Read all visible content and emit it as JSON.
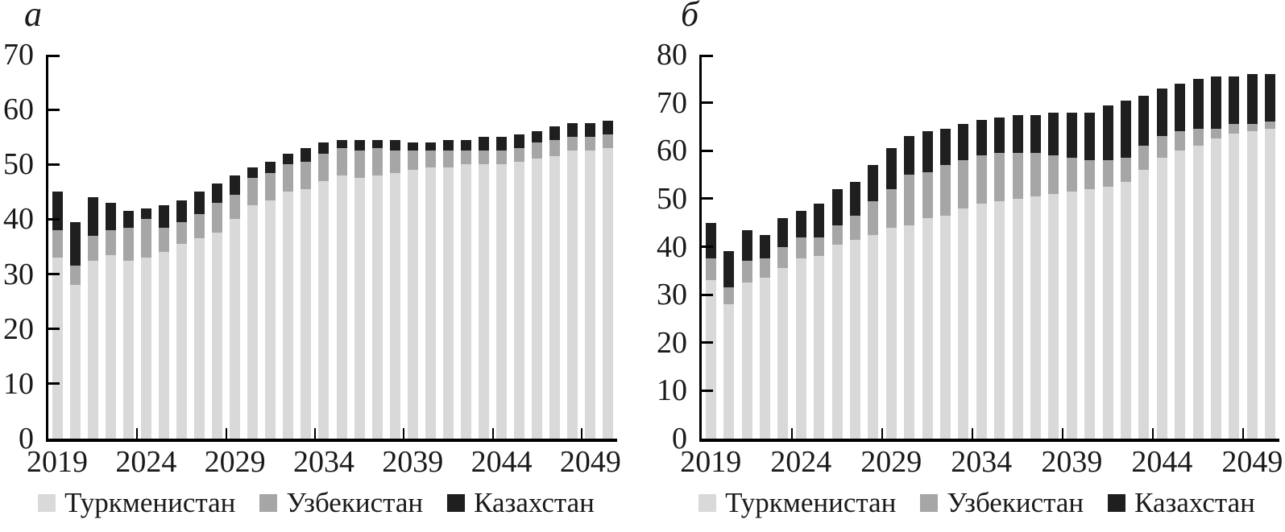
{
  "figure": {
    "background": "#ffffff",
    "text_color": "#1a1a1a",
    "axis_color": "#000000"
  },
  "chart_data": [
    {
      "id": "a",
      "title": "а",
      "type": "bar",
      "stacked": true,
      "grid": false,
      "legend_position": "bottom",
      "ylim": [
        0,
        70
      ],
      "y_ticks": [
        0,
        10,
        20,
        30,
        40,
        50,
        60,
        70
      ],
      "x": [
        2019,
        2020,
        2021,
        2022,
        2023,
        2024,
        2025,
        2026,
        2027,
        2028,
        2029,
        2030,
        2031,
        2032,
        2033,
        2034,
        2035,
        2036,
        2037,
        2038,
        2039,
        2040,
        2041,
        2042,
        2043,
        2044,
        2045,
        2046,
        2047,
        2048,
        2049,
        2050
      ],
      "x_tick_years": [
        2019,
        2024,
        2029,
        2034,
        2039,
        2044,
        2049
      ],
      "series": [
        {
          "name": "Туркменистан",
          "color": "#d9d9d9",
          "values": [
            33,
            28,
            32.5,
            33.5,
            32.5,
            33,
            34,
            35.5,
            36.5,
            37.5,
            40,
            42.5,
            43.5,
            45,
            45.5,
            47,
            48,
            47.5,
            48,
            48.5,
            49,
            49.5,
            49.5,
            50,
            50,
            50,
            50.5,
            51,
            51.5,
            52.5,
            52.5,
            53
          ]
        },
        {
          "name": "Узбекистан",
          "color": "#a6a6a6",
          "values": [
            5,
            3.5,
            4.5,
            4.5,
            6,
            7,
            4.5,
            4,
            4.5,
            5.5,
            4.5,
            5,
            5,
            5,
            5,
            5,
            5,
            5,
            5,
            4,
            3.5,
            3,
            3,
            2.5,
            2.5,
            2.5,
            2.5,
            3,
            3,
            2.5,
            2.5,
            2.5
          ]
        },
        {
          "name": "Казахстан",
          "color": "#1f1f1f",
          "values": [
            7,
            8,
            7,
            5,
            3,
            2,
            4,
            4,
            4,
            3.5,
            3.5,
            2,
            2,
            2,
            2.5,
            2,
            1.5,
            2,
            1.5,
            2,
            1.5,
            1.5,
            2,
            2,
            2.5,
            2.5,
            2.5,
            2,
            2.5,
            2.5,
            2.5,
            2.5
          ]
        }
      ]
    },
    {
      "id": "b",
      "title": "б",
      "type": "bar",
      "stacked": true,
      "grid": false,
      "legend_position": "bottom",
      "ylim": [
        0,
        80
      ],
      "y_ticks": [
        0,
        10,
        20,
        30,
        40,
        50,
        60,
        70,
        80
      ],
      "x": [
        2019,
        2020,
        2021,
        2022,
        2023,
        2024,
        2025,
        2026,
        2027,
        2028,
        2029,
        2030,
        2031,
        2032,
        2033,
        2034,
        2035,
        2036,
        2037,
        2038,
        2039,
        2040,
        2041,
        2042,
        2043,
        2044,
        2045,
        2046,
        2047,
        2048,
        2049,
        2050
      ],
      "x_tick_years": [
        2019,
        2024,
        2029,
        2034,
        2039,
        2044,
        2049
      ],
      "series": [
        {
          "name": "Туркменистан",
          "color": "#d9d9d9",
          "values": [
            33,
            28,
            32.5,
            33.5,
            35.5,
            37.5,
            38,
            40.5,
            41.5,
            42.5,
            44,
            44.5,
            46,
            46.5,
            48,
            49,
            49.5,
            50,
            50.5,
            51,
            51.5,
            52,
            52.5,
            53.5,
            56,
            58.5,
            60,
            61,
            62.5,
            63.5,
            64,
            64.5
          ]
        },
        {
          "name": "Узбекистан",
          "color": "#a6a6a6",
          "values": [
            4.5,
            3.5,
            4.5,
            4,
            4.5,
            4.5,
            4,
            4,
            5,
            7,
            8,
            10.5,
            9.5,
            10.5,
            10,
            10,
            10,
            9.5,
            9,
            8,
            7,
            6,
            5.5,
            5,
            5,
            4.5,
            4,
            3.5,
            2,
            2,
            1.5,
            1.5
          ]
        },
        {
          "name": "Казахстан",
          "color": "#1f1f1f",
          "values": [
            7.5,
            7.5,
            6.5,
            5,
            6,
            5.5,
            7,
            7.5,
            7,
            7.5,
            8.5,
            8,
            8.5,
            7.5,
            7.5,
            7.5,
            7.5,
            8,
            8,
            9,
            9.5,
            10,
            11.5,
            12,
            10.5,
            10,
            10,
            10.5,
            11,
            10,
            10.5,
            10
          ]
        }
      ]
    }
  ]
}
